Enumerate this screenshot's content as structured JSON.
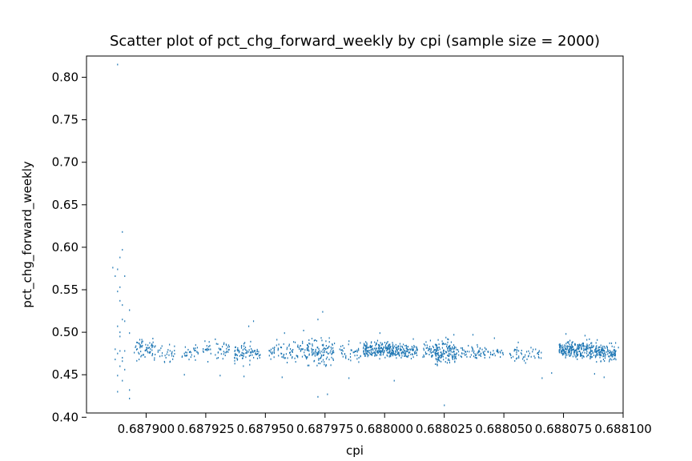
{
  "chart_data": {
    "type": "scatter",
    "title": "Scatter plot of pct_chg_forward_weekly by cpi (sample size = 2000)",
    "xlabel": "cpi",
    "ylabel": "pct_chg_forward_weekly",
    "xlim": [
      0.687875,
      0.6881
    ],
    "ylim": [
      0.405,
      0.825
    ],
    "x_ticks": [
      0.6879,
      0.687925,
      0.68795,
      0.687975,
      0.688,
      0.688025,
      0.68805,
      0.688075,
      0.6881
    ],
    "x_tick_labels": [
      "0.687900",
      "0.687925",
      "0.687950",
      "0.687975",
      "0.688000",
      "0.688025",
      "0.688050",
      "0.688075",
      "0.688100"
    ],
    "y_ticks": [
      0.4,
      0.45,
      0.5,
      0.55,
      0.6,
      0.65,
      0.7,
      0.75,
      0.8
    ],
    "y_tick_labels": [
      "0.40",
      "0.45",
      "0.50",
      "0.55",
      "0.60",
      "0.65",
      "0.70",
      "0.75",
      "0.80"
    ],
    "grid": false,
    "marker_color": "#1f77b4",
    "sample_size": 2000,
    "points": [
      [
        0.687888,
        0.815
      ],
      [
        0.68789,
        0.618
      ],
      [
        0.68789,
        0.597
      ],
      [
        0.687889,
        0.588
      ],
      [
        0.687886,
        0.576
      ],
      [
        0.687888,
        0.574
      ],
      [
        0.687887,
        0.566
      ],
      [
        0.687891,
        0.566
      ],
      [
        0.687889,
        0.553
      ],
      [
        0.687888,
        0.548
      ],
      [
        0.687889,
        0.537
      ],
      [
        0.68789,
        0.532
      ],
      [
        0.687893,
        0.526
      ],
      [
        0.68789,
        0.515
      ],
      [
        0.687891,
        0.513
      ],
      [
        0.687888,
        0.507
      ],
      [
        0.687889,
        0.5
      ],
      [
        0.687893,
        0.499
      ],
      [
        0.687889,
        0.495
      ],
      [
        0.687887,
        0.48
      ],
      [
        0.687889,
        0.478
      ],
      [
        0.687891,
        0.478
      ],
      [
        0.687888,
        0.475
      ],
      [
        0.68789,
        0.47
      ],
      [
        0.687887,
        0.468
      ],
      [
        0.68789,
        0.466
      ],
      [
        0.687889,
        0.46
      ],
      [
        0.687891,
        0.456
      ],
      [
        0.687888,
        0.449
      ],
      [
        0.68789,
        0.443
      ],
      [
        0.687888,
        0.43
      ],
      [
        0.687893,
        0.432
      ],
      [
        0.687893,
        0.422
      ],
      [
        0.687895,
        0.476
      ],
      [
        0.687897,
        0.468
      ],
      [
        0.687974,
        0.524
      ],
      [
        0.687972,
        0.515
      ],
      [
        0.687972,
        0.424
      ],
      [
        0.687976,
        0.427
      ],
      [
        0.687931,
        0.449
      ],
      [
        0.687941,
        0.448
      ],
      [
        0.687957,
        0.447
      ],
      [
        0.687916,
        0.45
      ],
      [
        0.687945,
        0.513
      ],
      [
        0.687943,
        0.507
      ],
      [
        0.687966,
        0.502
      ],
      [
        0.687985,
        0.446
      ],
      [
        0.687998,
        0.499
      ],
      [
        0.688004,
        0.443
      ],
      [
        0.688022,
        0.462
      ],
      [
        0.688025,
        0.414
      ],
      [
        0.688029,
        0.497
      ],
      [
        0.688037,
        0.497
      ],
      [
        0.688027,
        0.483
      ],
      [
        0.688066,
        0.446
      ],
      [
        0.68807,
        0.452
      ],
      [
        0.688076,
        0.498
      ],
      [
        0.688084,
        0.496
      ],
      [
        0.688092,
        0.447
      ],
      [
        0.688088,
        0.451
      ],
      [
        0.688098,
        0.482
      ],
      [
        0.688046,
        0.493
      ],
      [
        0.688056,
        0.488
      ],
      [
        0.688012,
        0.492
      ],
      [
        0.687958,
        0.499
      ]
    ],
    "clusters": [
      {
        "x": [
          0.687895,
          0.687906
        ],
        "ymin": 0.462,
        "ymax": 0.497,
        "n": 70
      },
      {
        "x": [
          0.687906,
          0.687912
        ],
        "ymin": 0.46,
        "ymax": 0.49,
        "n": 25
      },
      {
        "x": [
          0.687915,
          0.687922
        ],
        "ymin": 0.463,
        "ymax": 0.49,
        "n": 30
      },
      {
        "x": [
          0.687923,
          0.687935
        ],
        "ymin": 0.462,
        "ymax": 0.495,
        "n": 50
      },
      {
        "x": [
          0.687937,
          0.687944
        ],
        "ymin": 0.457,
        "ymax": 0.496,
        "n": 60
      },
      {
        "x": [
          0.687944,
          0.687948
        ],
        "ymin": 0.465,
        "ymax": 0.485,
        "n": 25
      },
      {
        "x": [
          0.687951,
          0.687966
        ],
        "ymin": 0.462,
        "ymax": 0.495,
        "n": 75
      },
      {
        "x": [
          0.687966,
          0.687979
        ],
        "ymin": 0.455,
        "ymax": 0.498,
        "n": 130
      },
      {
        "x": [
          0.687981,
          0.68799
        ],
        "ymin": 0.46,
        "ymax": 0.495,
        "n": 40
      },
      {
        "x": [
          0.687991,
          0.688004
        ],
        "ymin": 0.465,
        "ymax": 0.492,
        "n": 220
      },
      {
        "x": [
          0.688004,
          0.688014
        ],
        "ymin": 0.465,
        "ymax": 0.49,
        "n": 110
      },
      {
        "x": [
          0.688016,
          0.688022
        ],
        "ymin": 0.465,
        "ymax": 0.492,
        "n": 45
      },
      {
        "x": [
          0.688021,
          0.68803
        ],
        "ymin": 0.455,
        "ymax": 0.497,
        "n": 140
      },
      {
        "x": [
          0.68803,
          0.68804
        ],
        "ymin": 0.465,
        "ymax": 0.49,
        "n": 50
      },
      {
        "x": [
          0.68804,
          0.68805
        ],
        "ymin": 0.465,
        "ymax": 0.488,
        "n": 40
      },
      {
        "x": [
          0.688052,
          0.68806
        ],
        "ymin": 0.46,
        "ymax": 0.487,
        "n": 30
      },
      {
        "x": [
          0.68806,
          0.688066
        ],
        "ymin": 0.463,
        "ymax": 0.485,
        "n": 20
      },
      {
        "x": [
          0.688073,
          0.688082
        ],
        "ymin": 0.465,
        "ymax": 0.494,
        "n": 150
      },
      {
        "x": [
          0.688082,
          0.68809
        ],
        "ymin": 0.463,
        "ymax": 0.495,
        "n": 120
      },
      {
        "x": [
          0.68809,
          0.688097
        ],
        "ymin": 0.462,
        "ymax": 0.49,
        "n": 100
      }
    ]
  }
}
